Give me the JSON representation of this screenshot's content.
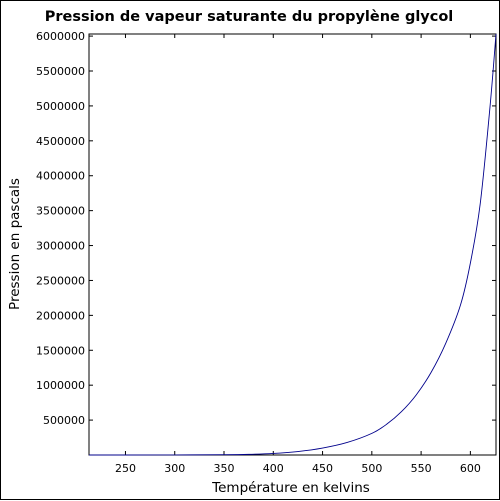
{
  "colors": {
    "curve": "#00008b",
    "axes": "#000000",
    "background": "#ffffff"
  },
  "chart_data": {
    "type": "line",
    "title": "Pression de vapeur saturante du propylène glycol",
    "xlabel": "Température en kelvins",
    "ylabel": "Pression en pascals",
    "xlim": [
      213,
      626
    ],
    "ylim": [
      0,
      6030000
    ],
    "grid": false,
    "legend": "none",
    "x_ticks": [
      250,
      300,
      350,
      400,
      450,
      500,
      550,
      600
    ],
    "x_tick_labels": [
      "250",
      "300",
      "350",
      "400",
      "450",
      "500",
      "550",
      "600"
    ],
    "y_ticks": [
      500000,
      1000000,
      1500000,
      2000000,
      2500000,
      3000000,
      3500000,
      4000000,
      4500000,
      5000000,
      5500000,
      6000000
    ],
    "y_tick_labels": [
      "500000",
      "1000000",
      "1500000",
      "2000000",
      "2500000",
      "3000000",
      "3500000",
      "4000000",
      "4500000",
      "5000000",
      "5500000",
      "6000000"
    ],
    "series": [
      {
        "x": [
          213,
          250,
          300,
          350,
          375,
          400,
          425,
          450,
          475,
          500,
          515,
          530,
          545,
          560,
          575,
          590,
          600,
          610,
          620,
          626
        ],
        "y": [
          0,
          0,
          1000,
          4000,
          9000,
          22000,
          50000,
          100000,
          180000,
          310000,
          440000,
          620000,
          860000,
          1180000,
          1600000,
          2150000,
          2750000,
          3600000,
          5000000,
          6030000
        ]
      }
    ]
  }
}
